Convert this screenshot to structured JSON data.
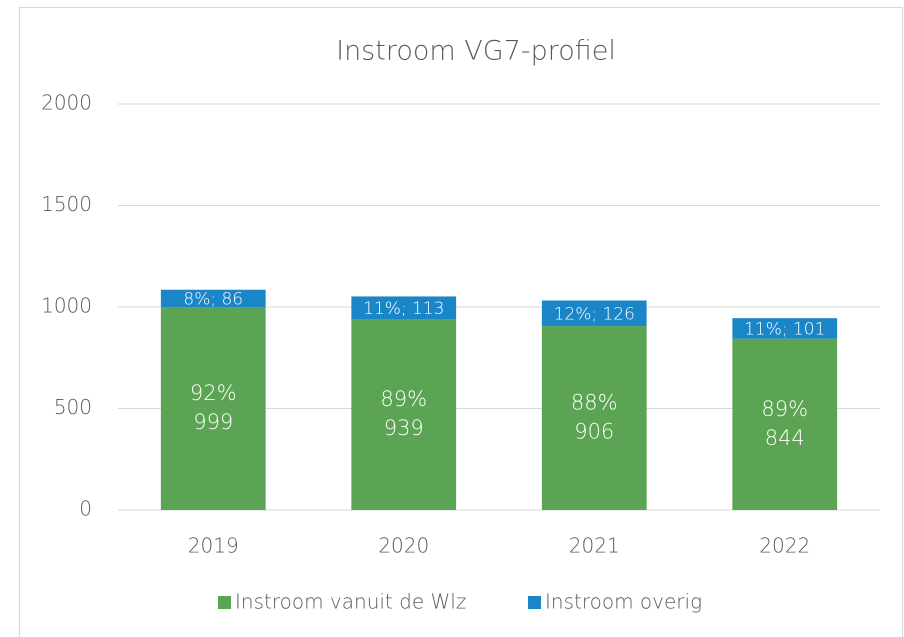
{
  "chart_data": {
    "type": "stacked-bar",
    "title": "Instroom VG7-profiel",
    "categories": [
      "2019",
      "2020",
      "2021",
      "2022"
    ],
    "series": [
      {
        "name": "Instroom vanuit de Wlz",
        "color": "#5ba453",
        "values": [
          999,
          939,
          906,
          844
        ],
        "value_labels": [
          [
            "92%",
            "999"
          ],
          [
            "89%",
            "939"
          ],
          [
            "88%",
            "906"
          ],
          [
            "89%",
            "844"
          ]
        ]
      },
      {
        "name": "Instroom overig",
        "color": "#1a86c8",
        "values": [
          86,
          113,
          126,
          101
        ],
        "value_labels": [
          "8%; 86",
          "11%; 113",
          "12%; 126",
          "11%; 101"
        ]
      }
    ],
    "ylim": [
      0,
      2000
    ],
    "yticks": [
      0,
      500,
      1000,
      1500,
      2000
    ],
    "grid": true,
    "legend": "bottom"
  }
}
